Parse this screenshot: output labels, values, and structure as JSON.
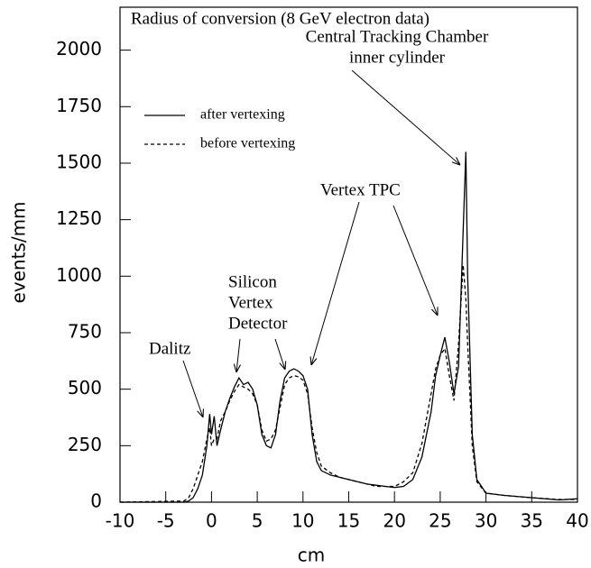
{
  "chart_data": {
    "type": "line",
    "title": "Radius of conversion (8 GeV electron data)",
    "x_label": "cm",
    "y_label": "events/mm",
    "x": [
      -10,
      -3,
      -2.5,
      -2,
      -1.5,
      -1,
      -0.5,
      -0.2,
      0,
      0.3,
      0.6,
      1,
      1.5,
      2,
      2.5,
      3,
      3.5,
      4,
      4.5,
      5,
      5.5,
      6,
      6.5,
      7,
      7.5,
      8,
      8.5,
      9,
      9.5,
      10,
      10.5,
      11,
      11.5,
      12,
      13,
      14,
      15,
      16,
      17,
      18,
      19,
      20,
      21,
      22,
      23,
      24,
      24.5,
      25,
      25.5,
      26,
      26.5,
      27,
      27.5,
      27.8,
      28,
      28.5,
      29,
      30,
      32,
      35,
      38,
      40
    ],
    "series": [
      {
        "name": "after vertexing",
        "color": "#000000",
        "line_style": "solid",
        "values": [
          0,
          0,
          5,
          20,
          60,
          120,
          250,
          390,
          300,
          380,
          250,
          320,
          400,
          460,
          510,
          550,
          520,
          530,
          500,
          430,
          300,
          250,
          240,
          300,
          450,
          550,
          580,
          590,
          580,
          560,
          500,
          300,
          180,
          140,
          120,
          110,
          100,
          90,
          80,
          75,
          70,
          65,
          70,
          100,
          200,
          400,
          560,
          650,
          730,
          620,
          480,
          600,
          1200,
          1550,
          1000,
          300,
          100,
          40,
          30,
          20,
          10,
          15
        ]
      },
      {
        "name": "before vertexing",
        "color": "#000000",
        "line_style": "dashed",
        "values": [
          0,
          5,
          20,
          60,
          120,
          180,
          280,
          330,
          250,
          280,
          280,
          360,
          400,
          450,
          490,
          520,
          510,
          500,
          480,
          430,
          320,
          270,
          280,
          320,
          420,
          520,
          550,
          560,
          555,
          540,
          480,
          330,
          220,
          160,
          130,
          110,
          100,
          90,
          80,
          70,
          70,
          70,
          90,
          130,
          260,
          480,
          590,
          650,
          680,
          560,
          450,
          700,
          1050,
          900,
          700,
          250,
          90,
          40,
          30,
          20,
          12,
          12
        ]
      }
    ],
    "xlim": [
      -10,
      40
    ],
    "ylim": [
      0,
      2190
    ],
    "xticks": [
      -10,
      -5,
      0,
      5,
      10,
      15,
      20,
      25,
      30,
      35,
      40
    ],
    "yticks": [
      0,
      250,
      500,
      750,
      1000,
      1250,
      1500,
      1750,
      2000
    ],
    "annotations": [
      {
        "text": [
          "Dalitz"
        ]
      },
      {
        "text": [
          "Silicon",
          "Vertex",
          "Detector"
        ]
      },
      {
        "text": [
          "Vertex TPC"
        ]
      },
      {
        "text": [
          "Central Tracking Chamber",
          "inner cylinder"
        ]
      }
    ]
  }
}
